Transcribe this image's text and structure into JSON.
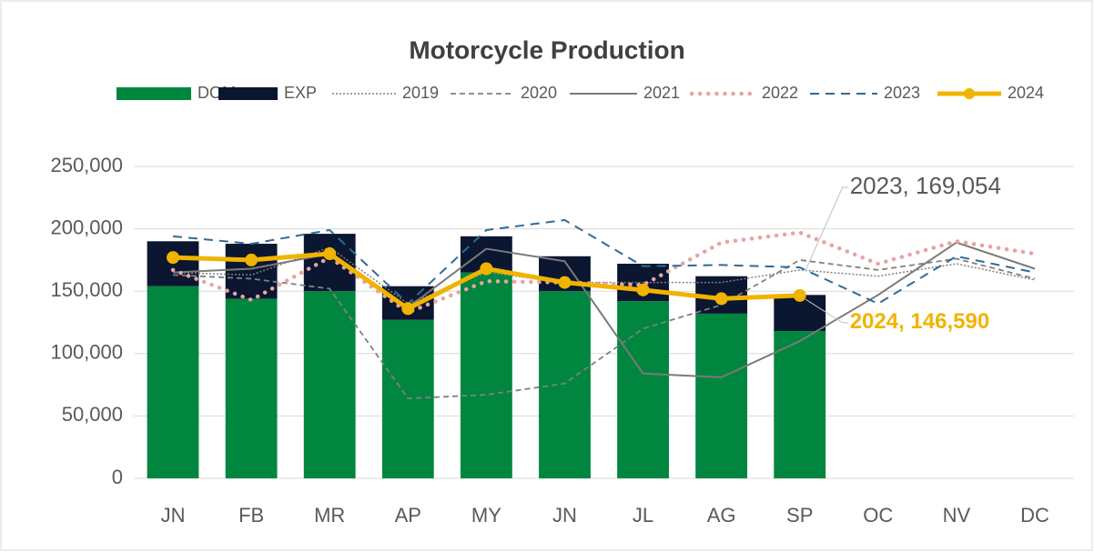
{
  "chart_data": {
    "type": "bar-line",
    "title": "Motorcycle Production",
    "categories": [
      "JN",
      "FB",
      "MR",
      "AP",
      "MY",
      "JN",
      "JL",
      "AG",
      "SP",
      "OC",
      "NV",
      "DC"
    ],
    "ylim": [
      0,
      250000
    ],
    "yticks": [
      0,
      {
        "value": 50000,
        "label": "50,000"
      },
      {
        "value": 100000,
        "label": "100,000"
      },
      {
        "value": 150000,
        "label": "150,000"
      },
      {
        "value": 200000,
        "label": "200,000"
      },
      {
        "value": 250000,
        "label": "250,000"
      }
    ],
    "grid": true,
    "legend": "top",
    "series": [
      {
        "name": "DOM",
        "type": "bar",
        "color": "#00863f",
        "values": [
          154000,
          144000,
          150000,
          127000,
          165000,
          150000,
          142000,
          132000,
          118000,
          null,
          null,
          null
        ]
      },
      {
        "name": "EXP",
        "type": "bar",
        "color": "#0b1631",
        "values": [
          36000,
          44000,
          46000,
          27000,
          29000,
          28000,
          30000,
          30000,
          29000,
          null,
          null,
          null
        ]
      },
      {
        "name": "2019",
        "type": "line",
        "style": "dotted",
        "color": "#808080",
        "values": [
          165000,
          163000,
          185000,
          140000,
          165000,
          157000,
          157000,
          157000,
          167000,
          162000,
          172000,
          159000
        ]
      },
      {
        "name": "2020",
        "type": "line",
        "style": "dashed",
        "color": "#808080",
        "values": [
          163000,
          160000,
          152000,
          64000,
          67000,
          76000,
          120000,
          139000,
          175000,
          167000,
          176000,
          160000
        ]
      },
      {
        "name": "2021",
        "type": "line",
        "style": "solid",
        "color": "#7a7a7a",
        "values": [
          165000,
          168000,
          180000,
          137000,
          184000,
          174000,
          84000,
          81000,
          110000,
          147000,
          189000,
          168000
        ]
      },
      {
        "name": "2022",
        "type": "line",
        "style": "round-dotted",
        "color": "#e8a3a3",
        "values": [
          167000,
          143000,
          177000,
          133000,
          158000,
          157000,
          155000,
          189000,
          197000,
          172000,
          190000,
          180000
        ]
      },
      {
        "name": "2023",
        "type": "line",
        "style": "long-dashed",
        "color": "#2f6b96",
        "values": [
          194000,
          188000,
          199000,
          140000,
          199000,
          207000,
          170000,
          171000,
          169054,
          140000,
          178000,
          165000
        ],
        "value_labels": [
          null,
          null,
          null,
          null,
          null,
          null,
          null,
          null,
          "2023,  169,054",
          null,
          null,
          null
        ]
      },
      {
        "name": "2024",
        "type": "line",
        "style": "marker",
        "color": "#f0b400",
        "values": [
          177000,
          175000,
          180000,
          136000,
          168000,
          157000,
          151000,
          144000,
          146590,
          null,
          null,
          null
        ],
        "value_labels": [
          null,
          null,
          null,
          null,
          null,
          null,
          null,
          null,
          "2024,  146,590",
          null,
          null,
          null
        ]
      }
    ]
  }
}
